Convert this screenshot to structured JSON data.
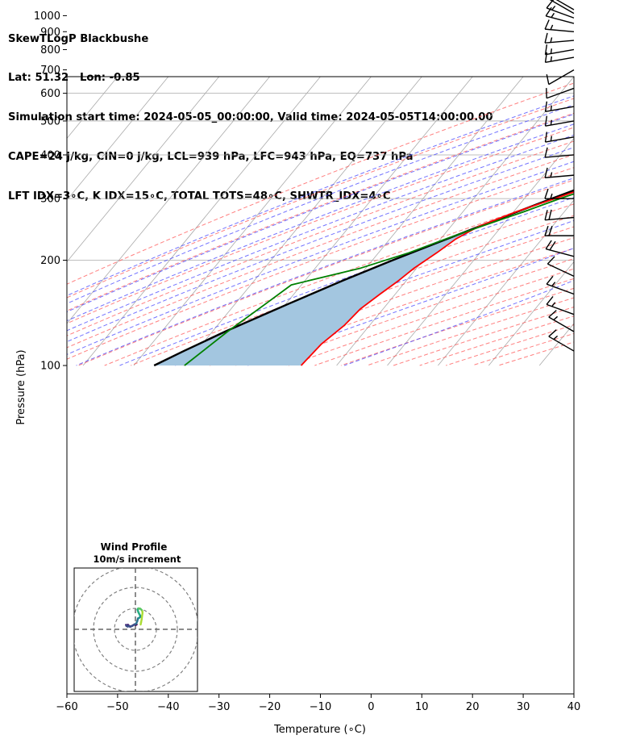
{
  "header": {
    "line1": "SkewTLogP Blackbushe",
    "line2": "Lat: 51.32   Lon: -0.85",
    "line3": "Simulation start time: 2024-05-05_00:00:00, Valid time: 2024-05-05T14:00:00.00",
    "line4": "CAPE=24 j/kg, CIN=0 j/kg, LCL=939 hPa, LFC=943 hPa, EQ=737 hPa",
    "line5": "LFT IDX=3∘C, K IDX=15∘C, TOTAL TOTS=48∘C, SHWTR_IDX=4∘C"
  },
  "colors": {
    "temperature": "#ff0000",
    "dewpoint": "#008000",
    "parcel": "#000000",
    "cape_fill": "#a3c6e0",
    "dry_adiabat": "#ff5555",
    "moist_adiabat": "#4444ff",
    "mixing_ratio": "#9933cc",
    "isotherm": "#aaaaaa"
  },
  "chart_data": [
    {
      "type": "line",
      "xlabel": "Temperature (∘C)",
      "ylabel": "Pressure (hPa)",
      "xlim": [
        -60,
        40
      ],
      "ylim": [
        1050,
        100
      ],
      "yscale": "log",
      "skew": "45deg",
      "grid": true,
      "x_ticks": [
        -60,
        -50,
        -40,
        -30,
        -20,
        -10,
        0,
        10,
        20,
        30,
        40
      ],
      "x_tick_labels": [
        "−60",
        "−50",
        "−40",
        "−30",
        "−20",
        "−10",
        "0",
        "10",
        "20",
        "30",
        "40"
      ],
      "y_ticks": [
        1000,
        900,
        800,
        700,
        600,
        500,
        400,
        300,
        200,
        100
      ],
      "y_tick_labels": [
        "1000",
        "900",
        "800",
        "700",
        "600",
        "500",
        "400",
        "300",
        "200",
        "100"
      ],
      "series": [
        {
          "key": "temperature",
          "pressure": [
            1000,
            980,
            950,
            940,
            900,
            850,
            800,
            750,
            700,
            650,
            600,
            550,
            500,
            450,
            400,
            350,
            300,
            275,
            250,
            230,
            210,
            190,
            175,
            160,
            145,
            130,
            115,
            100
          ],
          "temperature": [
            15.3,
            14.0,
            12.0,
            11.5,
            11.0,
            9.0,
            7.0,
            5.0,
            2.5,
            -0.8,
            -4.5,
            -9.5,
            -13.5,
            -19.5,
            -26.5,
            -34.5,
            -44.0,
            -49.5,
            -54.5,
            -57.0,
            -58.5,
            -60.5,
            -61.5,
            -63.0,
            -64.5,
            -65.0,
            -66.5,
            -67.0
          ]
        },
        {
          "key": "dewpoint",
          "pressure": [
            1000,
            980,
            950,
            900,
            850,
            800,
            750,
            700,
            670,
            650,
            620,
            600,
            550,
            500,
            450,
            400,
            350,
            300,
            275,
            250,
            230,
            210,
            190,
            170,
            150,
            125,
            100
          ],
          "dewpoint": [
            11.5,
            11.4,
            11.0,
            9.5,
            7.0,
            4.0,
            -2.0,
            -15.0,
            -25.0,
            -22.0,
            -16.0,
            -12.5,
            -12.5,
            -14.0,
            -20.0,
            -26.0,
            -33.0,
            -43.0,
            -48.0,
            -54.0,
            -59.0,
            -64.0,
            -71.0,
            -82.0,
            -84.0,
            -87.0,
            -90.0
          ]
        },
        {
          "key": "parcel",
          "pressure": [
            1000,
            970,
            945,
            900,
            850,
            800,
            750,
            700,
            650,
            600,
            550,
            500,
            450,
            400,
            350,
            300,
            250,
            200,
            175,
            150,
            125,
            110,
            100
          ],
          "temperature": [
            15.3,
            12.6,
            11.4,
            9.5,
            7.2,
            4.8,
            2.2,
            -0.8,
            -4.0,
            -7.8,
            -12.0,
            -16.8,
            -22.4,
            -28.8,
            -36.0,
            -44.6,
            -54.4,
            -66.0,
            -72.5,
            -79.5,
            -87.5,
            -92.5,
            -96.0
          ]
        }
      ]
    },
    {
      "type": "line",
      "title": "Wind Profile",
      "subtitle": "10m/s increment",
      "rings_ms": [
        10,
        20,
        30
      ],
      "hodograph_u": [
        0.6,
        0.2,
        -0.5,
        -1.0,
        -1.5,
        -2.0,
        -2.5,
        -3.0,
        -3.6,
        -4.2,
        -4.5,
        -4.3,
        -3.7,
        -3.0,
        -2.0,
        -1.2,
        -0.5,
        0.2,
        0.5,
        0.8,
        1.0,
        1.2,
        1.5,
        1.8,
        2.2,
        2.4,
        2.3,
        2.0,
        1.7,
        1.4,
        1.2,
        1.0,
        1.2,
        1.5,
        1.8,
        2.2,
        2.6,
        3.0,
        3.3,
        3.4,
        3.2,
        3.0,
        2.7,
        2.5
      ],
      "hodograph_v": [
        2.3,
        2.1,
        2.3,
        2.0,
        1.7,
        1.5,
        1.2,
        1.6,
        2.2,
        1.8,
        2.1,
        1.6,
        1.3,
        1.5,
        1.4,
        1.8,
        2.3,
        2.6,
        3.0,
        3.7,
        4.4,
        5.2,
        5.3,
        5.5,
        5.8,
        6.0,
        6.5,
        7.0,
        7.6,
        8.2,
        8.8,
        9.4,
        9.8,
        10.0,
        9.8,
        9.9,
        9.6,
        9.2,
        8.6,
        7.8,
        6.5,
        4.8,
        3.3,
        2.3
      ]
    }
  ],
  "barbs": {
    "pressure": [
      1040,
      1015,
      985,
      950,
      900,
      850,
      800,
      760,
      700,
      620,
      550,
      500,
      450,
      400,
      350,
      300,
      265,
      235,
      205,
      180,
      160,
      140,
      125,
      110
    ],
    "speed_kt": [
      20,
      20,
      15,
      15,
      15,
      15,
      15,
      15,
      10,
      10,
      15,
      15,
      15,
      10,
      15,
      15,
      20,
      20,
      20,
      10,
      15,
      15,
      15,
      15
    ],
    "dir_deg": [
      300,
      300,
      290,
      285,
      275,
      265,
      260,
      260,
      240,
      250,
      260,
      260,
      260,
      265,
      265,
      270,
      265,
      270,
      285,
      295,
      290,
      290,
      300,
      300
    ]
  }
}
